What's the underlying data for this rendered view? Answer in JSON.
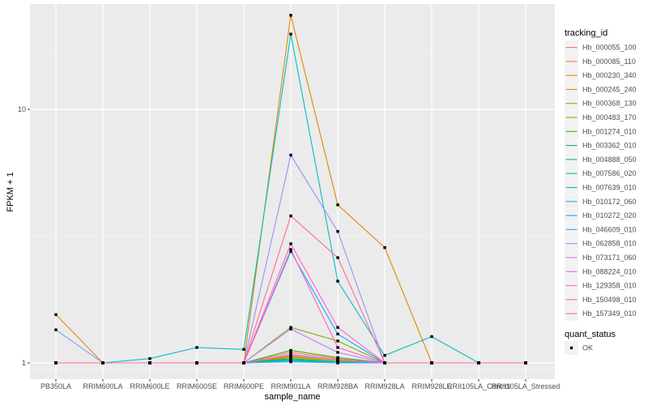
{
  "chart_data": {
    "type": "line",
    "xlabel": "sample_name",
    "ylabel": "FPKM + 1",
    "y_scale": "log10",
    "ylim": [
      0.9,
      27
    ],
    "y_ticks": [
      1,
      10
    ],
    "y_tick_labels": [
      "1",
      "10"
    ],
    "grid": true,
    "legend_position": "right",
    "categories": [
      "PB350LA",
      "RRIM600LA",
      "RRIM600LE",
      "RRIM600SE",
      "RRIM600PE",
      "RRIM901LA",
      "RRIM928BA",
      "RRIM928LA",
      "RRIM928LE",
      "RRII105LA_Control",
      "RRII105LA_Stressed"
    ],
    "legend_title": "tracking_id",
    "series": [
      {
        "name": "Hb_000055_100",
        "color": "#F8766D",
        "values": [
          1,
          1,
          1,
          1,
          1,
          1.1,
          1.04,
          1,
          1,
          1,
          1
        ]
      },
      {
        "name": "Hb_000085_110",
        "color": "#F17D50",
        "values": [
          1,
          1,
          1,
          1,
          1,
          1.07,
          1.03,
          1,
          1,
          1,
          1
        ]
      },
      {
        "name": "Hb_000230_340",
        "color": "#E58700",
        "values": [
          1.55,
          1,
          1,
          1,
          1,
          23.5,
          4.2,
          2.85,
          1,
          1,
          1
        ]
      },
      {
        "name": "Hb_000245_240",
        "color": "#D89000",
        "values": [
          1,
          1,
          1,
          1,
          1,
          1.06,
          1.02,
          1,
          1,
          1,
          1
        ]
      },
      {
        "name": "Hb_000368_130",
        "color": "#A3A500",
        "values": [
          1,
          1,
          1,
          1,
          1,
          1.05,
          1.02,
          1,
          1,
          1,
          1
        ]
      },
      {
        "name": "Hb_000483_170",
        "color": "#7CAE00",
        "values": [
          1,
          1,
          1,
          1,
          1,
          1.38,
          1.22,
          1,
          1,
          1,
          1
        ]
      },
      {
        "name": "Hb_001274_010",
        "color": "#39B600",
        "values": [
          1,
          1,
          1,
          1,
          1,
          1.12,
          1.05,
          1,
          1,
          1,
          1
        ]
      },
      {
        "name": "Hb_003362_010",
        "color": "#00BB4E",
        "values": [
          1,
          1,
          1,
          1,
          1,
          1.04,
          1.01,
          1,
          1,
          1,
          1
        ]
      },
      {
        "name": "Hb_004888_050",
        "color": "#00BF7D",
        "values": [
          1,
          1,
          1,
          1,
          1,
          1.03,
          1.01,
          1,
          1,
          1,
          1
        ]
      },
      {
        "name": "Hb_007586_020",
        "color": "#00C1A3",
        "values": [
          1,
          1,
          1,
          1,
          1,
          1.02,
          1.01,
          1,
          1,
          1,
          1
        ]
      },
      {
        "name": "Hb_007639_010",
        "color": "#00BFC4",
        "values": [
          1,
          1,
          1.04,
          1.15,
          1.13,
          19.8,
          2.1,
          1.07,
          1.27,
          1,
          1
        ]
      },
      {
        "name": "Hb_010172_060",
        "color": "#00BAE0",
        "values": [
          1,
          1,
          1,
          1,
          1,
          1.02,
          1,
          1,
          1,
          1,
          1
        ]
      },
      {
        "name": "Hb_010272_020",
        "color": "#00B0F6",
        "values": [
          1,
          1,
          1,
          1,
          1,
          2.75,
          1.3,
          1,
          1,
          1,
          1
        ]
      },
      {
        "name": "Hb_046609_010",
        "color": "#35A2FF",
        "values": [
          1,
          1,
          1,
          1,
          1,
          1.01,
          1,
          1,
          1,
          1,
          1
        ]
      },
      {
        "name": "Hb_062858_010",
        "color": "#9590FF",
        "values": [
          1.35,
          1,
          1,
          1,
          1,
          6.6,
          3.3,
          1,
          1,
          1,
          1
        ]
      },
      {
        "name": "Hb_073171_060",
        "color": "#C77CFF",
        "values": [
          1,
          1,
          1,
          1,
          1,
          1.36,
          1.1,
          1,
          1,
          1,
          1
        ]
      },
      {
        "name": "Hb_088224_010",
        "color": "#E76BF3",
        "values": [
          1,
          1,
          1,
          1,
          1,
          1.08,
          1.03,
          1,
          1,
          1,
          1
        ]
      },
      {
        "name": "Hb_129358_010",
        "color": "#FA62DB",
        "values": [
          1,
          1,
          1,
          1,
          1,
          2.95,
          1.38,
          1,
          1,
          1,
          1
        ]
      },
      {
        "name": "Hb_150498_010",
        "color": "#FF62BC",
        "values": [
          1,
          1,
          1,
          1,
          1,
          2.8,
          1.15,
          1,
          1,
          1,
          1
        ]
      },
      {
        "name": "Hb_157349_010",
        "color": "#FF6C91",
        "values": [
          1,
          1,
          1,
          1,
          1,
          3.8,
          2.6,
          1,
          1,
          1,
          1
        ]
      }
    ],
    "shape_legend": {
      "title": "quant_status",
      "entries": [
        {
          "label": "OK"
        }
      ]
    }
  }
}
